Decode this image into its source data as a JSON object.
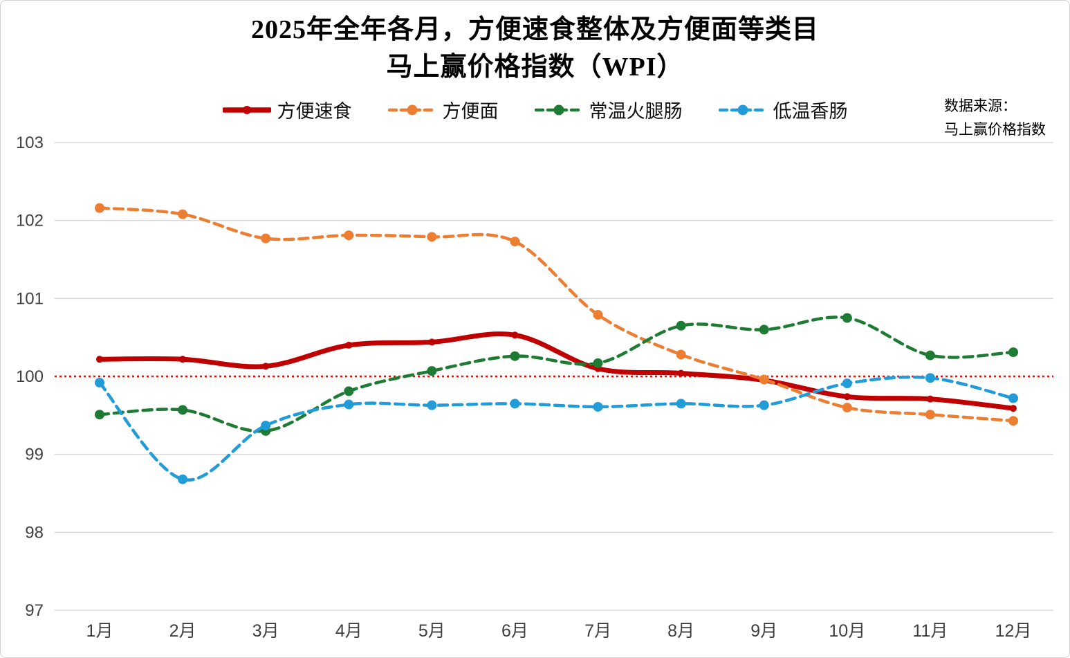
{
  "title": {
    "line1": "2025年全年各月，方便速食整体及方便面等类目",
    "line2": "马上赢价格指数（WPI）"
  },
  "source_note": {
    "line1": "数据来源：",
    "line2": "马上赢价格指数"
  },
  "chart_data": {
    "type": "line",
    "title": "2025年全年各月，方便速食整体及方便面等类目 马上赢价格指数（WPI）",
    "categories": [
      "1月",
      "2月",
      "3月",
      "4月",
      "5月",
      "6月",
      "7月",
      "8月",
      "9月",
      "10月",
      "11月",
      "12月"
    ],
    "series": [
      {
        "name": "方便速食",
        "color": "#C00000",
        "line_style": "solid",
        "line_width": 7,
        "marker_radius": 5,
        "values": [
          100.22,
          100.22,
          100.13,
          100.4,
          100.44,
          100.53,
          100.1,
          100.04,
          99.95,
          99.74,
          99.71,
          99.59
        ]
      },
      {
        "name": "方便面",
        "color": "#ED7D31",
        "line_style": "dashed",
        "line_width": 4.5,
        "marker_radius": 7,
        "values": [
          102.16,
          102.08,
          101.77,
          101.81,
          101.79,
          101.73,
          100.79,
          100.28,
          99.96,
          99.6,
          99.51,
          99.43
        ]
      },
      {
        "name": "常温火腿肠",
        "color": "#1E7B34",
        "line_style": "dashed",
        "line_width": 4.5,
        "marker_radius": 7,
        "values": [
          99.51,
          99.57,
          99.3,
          99.81,
          100.07,
          100.26,
          100.17,
          100.65,
          100.6,
          100.75,
          100.27,
          100.31
        ]
      },
      {
        "name": "低温香肠",
        "color": "#219CD9",
        "line_style": "dashed",
        "line_width": 4.5,
        "marker_radius": 7,
        "values": [
          99.92,
          98.68,
          99.37,
          99.64,
          99.63,
          99.65,
          99.61,
          99.65,
          99.63,
          99.91,
          99.98,
          99.72
        ]
      }
    ],
    "ylim": [
      97,
      103
    ],
    "yticks": [
      97,
      98,
      99,
      100,
      101,
      102,
      103
    ],
    "xlabel": "",
    "ylabel": "",
    "grid": true,
    "gridline_color": "#D9D9D9",
    "axis_label_color": "#3F3F3F",
    "reference_line": {
      "value": 100,
      "color": "#FF0000",
      "style": "dotted"
    },
    "legend_position": "top",
    "smooth": true
  }
}
